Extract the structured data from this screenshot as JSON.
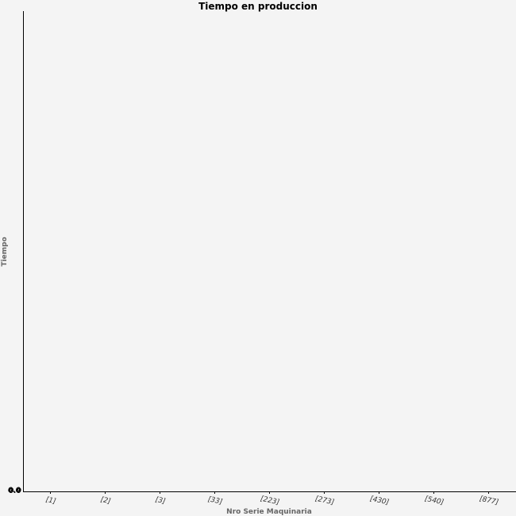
{
  "chart_data": {
    "type": "bar",
    "title": "Tiempo en produccion",
    "xlabel": "Nro Serie Maquinaria",
    "ylabel": "Tiempo",
    "categories": [
      "[1]",
      "[2]",
      "[3]",
      "[33]",
      "[223]",
      "[273]",
      "[430]",
      "[540]",
      "[877]"
    ],
    "values": [
      0,
      0,
      0,
      0,
      0,
      0,
      0,
      0,
      0
    ],
    "y_ticks": [
      "0.0",
      "0.0"
    ],
    "ylim": [
      0,
      1
    ],
    "grid": false,
    "legend": "none"
  },
  "colors": {
    "plot_background": "#f4f4f4",
    "axis": "#000000",
    "bar": "#4472c4"
  }
}
